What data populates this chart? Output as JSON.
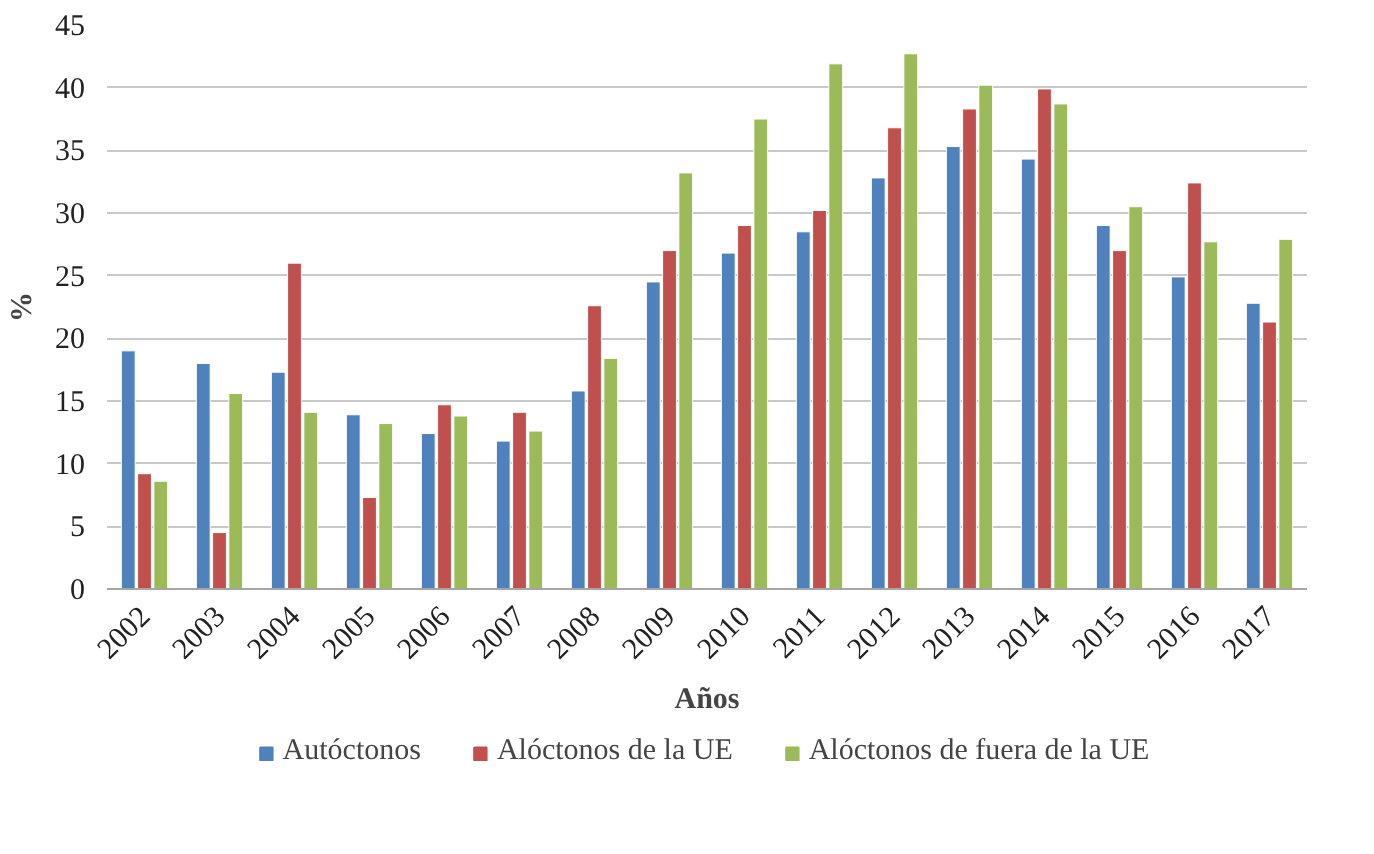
{
  "chart_data": {
    "type": "bar",
    "xlabel": "Años",
    "ylabel": "%",
    "categories": [
      "2002",
      "2003",
      "2004",
      "2005",
      "2006",
      "2007",
      "2008",
      "2009",
      "2010",
      "2011",
      "2012",
      "2013",
      "2014",
      "2015",
      "2016",
      "2017"
    ],
    "series": [
      {
        "name": "Autóctonos",
        "color": "#4f81bd",
        "values": [
          19,
          18,
          17.3,
          13.9,
          12.4,
          11.8,
          15.8,
          24.5,
          26.8,
          28.5,
          32.8,
          35.3,
          34.3,
          29,
          24.9,
          22.8
        ]
      },
      {
        "name": "Alóctonos de la UE",
        "color": "#c0504d",
        "values": [
          9.2,
          4.5,
          26,
          7.3,
          14.7,
          14.1,
          22.6,
          27,
          29,
          30.2,
          36.8,
          38.3,
          39.9,
          27,
          32.4,
          21.3
        ]
      },
      {
        "name": "Alóctonos de fuera de la UE",
        "color": "#9bbb59",
        "values": [
          8.6,
          15.6,
          14.1,
          13.2,
          13.8,
          12.6,
          18.4,
          33.2,
          37.5,
          41.9,
          42.7,
          40.2,
          38.7,
          30.5,
          27.7,
          27.9
        ]
      }
    ],
    "ylim": [
      0,
      45
    ],
    "yticks": [
      0,
      5,
      10,
      15,
      20,
      25,
      30,
      35,
      40,
      45
    ],
    "grid": "y",
    "legend": "bottom"
  }
}
